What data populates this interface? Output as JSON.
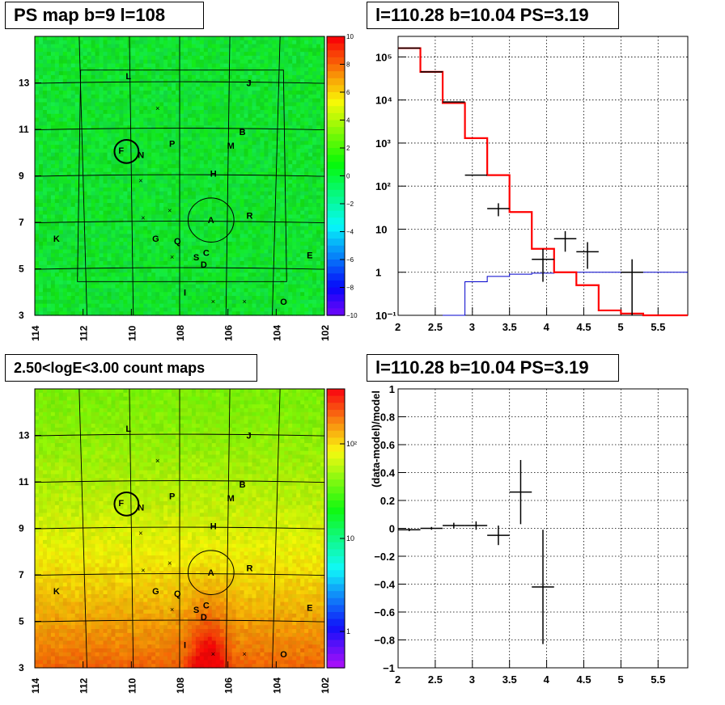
{
  "panels": {
    "ps_map": {
      "title": "PS map b=9 l=108",
      "colorbar_ticks": [
        "10",
        "8",
        "6",
        "4",
        "2",
        "0",
        "−2",
        "−4",
        "−6",
        "−8",
        "−10"
      ]
    },
    "spectrum": {
      "title": "l=110.28 b=10.04 PS=3.19"
    },
    "count_map": {
      "title": "2.50<logE<3.00 count maps",
      "colorbar_ticks": [
        "10²",
        "10",
        "1"
      ]
    },
    "residual": {
      "title": "l=110.28 b=10.04 PS=3.19",
      "ylabel": "(data-model)/model"
    }
  },
  "map_axes": {
    "x_ticks": [
      "114",
      "112",
      "110",
      "108",
      "106",
      "104",
      "102"
    ],
    "y_ticks": [
      "13",
      "11",
      "9",
      "7",
      "5",
      "3"
    ],
    "labels": [
      {
        "t": "L",
        "l": 110.1,
        "b": 13.3
      },
      {
        "t": "J",
        "l": 105.1,
        "b": 13.0
      },
      {
        "t": "B",
        "l": 105.4,
        "b": 10.9
      },
      {
        "t": "M",
        "l": 105.9,
        "b": 10.3
      },
      {
        "t": "P",
        "l": 108.3,
        "b": 10.4
      },
      {
        "t": "N",
        "l": 109.6,
        "b": 9.9
      },
      {
        "t": "F",
        "l": 110.4,
        "b": 10.1
      },
      {
        "t": "H",
        "l": 106.6,
        "b": 9.1
      },
      {
        "t": "A",
        "l": 106.7,
        "b": 7.1
      },
      {
        "t": "R",
        "l": 105.1,
        "b": 7.3
      },
      {
        "t": "K",
        "l": 113.1,
        "b": 6.3
      },
      {
        "t": "G",
        "l": 109.0,
        "b": 6.3
      },
      {
        "t": "Q",
        "l": 108.1,
        "b": 6.2
      },
      {
        "t": "S",
        "l": 107.3,
        "b": 5.5
      },
      {
        "t": "C",
        "l": 106.9,
        "b": 5.7
      },
      {
        "t": "D",
        "l": 107.0,
        "b": 5.2
      },
      {
        "t": "E",
        "l": 102.6,
        "b": 5.6
      },
      {
        "t": "I",
        "l": 107.7,
        "b": 4.0
      },
      {
        "t": "O",
        "l": 103.7,
        "b": 3.6
      }
    ],
    "crosses": [
      {
        "l": 108.9,
        "b": 11.9
      },
      {
        "l": 109.6,
        "b": 8.8
      },
      {
        "l": 109.5,
        "b": 7.2
      },
      {
        "l": 108.4,
        "b": 7.5
      },
      {
        "l": 108.3,
        "b": 5.5
      },
      {
        "l": 106.6,
        "b": 3.6
      },
      {
        "l": 105.3,
        "b": 3.6
      }
    ],
    "circles": [
      {
        "l": 110.2,
        "b": 10.05,
        "r": 0.5
      },
      {
        "l": 106.7,
        "b": 7.1,
        "r": 0.95
      }
    ]
  },
  "chart_data": [
    {
      "type": "heatmap",
      "title": "PS map b=9 l=108",
      "xlabel": "",
      "ylabel": "",
      "xlim": [
        114,
        102
      ],
      "ylim": [
        3,
        15
      ],
      "zlim": [
        -10,
        10
      ],
      "description_values": "mostly near 0 (green) across the field"
    },
    {
      "type": "line",
      "title": "l=110.28 b=10.04 PS=3.19",
      "xlabel": "",
      "ylabel": "",
      "xlim": [
        2,
        5.9
      ],
      "ylim": [
        0.1,
        300000
      ],
      "yscale": "log",
      "y_ticks": [
        "10⁻¹",
        "1",
        "10",
        "10²",
        "10³",
        "10⁴",
        "10⁵"
      ],
      "x_ticks": [
        "2",
        "2.5",
        "3",
        "3.5",
        "4",
        "4.5",
        "5",
        "5.5"
      ],
      "series": [
        {
          "color": "#000000",
          "style": "data",
          "points": [
            {
              "x": 2.15,
              "y": 160000,
              "xerr": 0.15
            },
            {
              "x": 2.45,
              "y": 45000,
              "xerr": 0.15
            },
            {
              "x": 2.75,
              "y": 9000,
              "xerr": 0.15
            },
            {
              "x": 3.05,
              "y": 180,
              "xerr": 0.15
            },
            {
              "x": 3.35,
              "y": 30,
              "xerr": 0.15,
              "ylo": 20,
              "yhi": 40
            },
            {
              "x": 3.95,
              "y": 2,
              "xerr": 0.15,
              "ylo": 0.6,
              "yhi": 3.5
            },
            {
              "x": 4.25,
              "y": 6,
              "xerr": 0.15,
              "ylo": 3,
              "yhi": 9
            },
            {
              "x": 4.55,
              "y": 3,
              "xerr": 0.15,
              "ylo": 1.2,
              "yhi": 5
            },
            {
              "x": 5.15,
              "y": 1,
              "xerr": 0.15,
              "ylo": 0.1,
              "yhi": 2
            }
          ]
        },
        {
          "color": "#ff0000",
          "style": "step",
          "edges": [
            2.0,
            2.3,
            2.6,
            2.9,
            3.2,
            3.5,
            3.8,
            4.1,
            4.4,
            4.7,
            5.0,
            5.3,
            5.6,
            5.9
          ],
          "values": [
            160000,
            45000,
            8500,
            1300,
            180,
            25,
            3.5,
            1.0,
            0.5,
            0.13,
            0.11,
            0.1,
            0.1
          ]
        },
        {
          "color": "#0000cc",
          "style": "step",
          "edges": [
            2.6,
            2.9,
            3.2,
            3.5,
            3.8,
            4.1,
            4.4,
            4.7,
            5.0,
            5.3,
            5.6,
            5.9
          ],
          "values": [
            0.1,
            0.6,
            0.8,
            0.9,
            0.95,
            1.0,
            1.0,
            1.0,
            1.0,
            1.0,
            1.0
          ]
        }
      ]
    },
    {
      "type": "heatmap",
      "title": "2.50<logE<3.00 count maps",
      "xlim": [
        114,
        102
      ],
      "ylim": [
        3,
        15
      ],
      "zscale": "log",
      "zlim": [
        0.5,
        300
      ],
      "description_values": "counts rise toward low latitude (b≈3), highest near l≈106.7"
    },
    {
      "type": "scatter",
      "title": "l=110.28 b=10.04 PS=3.19",
      "xlabel": "",
      "ylabel": "(data-model)/model",
      "xlim": [
        2,
        5.9
      ],
      "ylim": [
        -1,
        1
      ],
      "x_ticks": [
        "2",
        "2.5",
        "3",
        "3.5",
        "4",
        "4.5",
        "5",
        "5.5"
      ],
      "y_ticks": [
        "1",
        "0.8",
        "0.6",
        "0.4",
        "0.2",
        "0",
        "−0.2",
        "−0.4",
        "−0.6",
        "−0.8",
        "−1"
      ],
      "points": [
        {
          "x": 2.15,
          "y": -0.01,
          "xerr": 0.15,
          "yerr": 0.01
        },
        {
          "x": 2.45,
          "y": 0.0,
          "xerr": 0.15,
          "yerr": 0.01
        },
        {
          "x": 2.75,
          "y": 0.02,
          "xerr": 0.15,
          "yerr": 0.02
        },
        {
          "x": 3.05,
          "y": 0.02,
          "xerr": 0.15,
          "yerr": 0.03
        },
        {
          "x": 3.35,
          "y": -0.05,
          "xerr": 0.15,
          "yerr": 0.07
        },
        {
          "x": 3.65,
          "y": 0.26,
          "xerr": 0.15,
          "yerr": 0.23
        },
        {
          "x": 3.95,
          "y": -0.42,
          "xerr": 0.15,
          "yerr": 0.41
        }
      ]
    }
  ]
}
